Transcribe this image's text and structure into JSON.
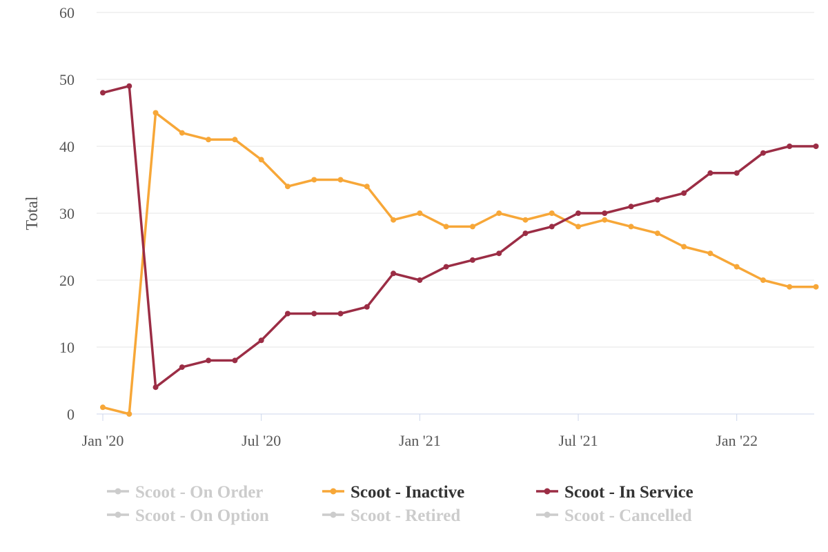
{
  "chart_data": {
    "type": "line",
    "title": "",
    "xlabel": "",
    "ylabel": "Total",
    "ylim": [
      0,
      60
    ],
    "y_ticks": [
      0,
      10,
      20,
      30,
      40,
      50,
      60
    ],
    "x_ticks": [
      {
        "index": 0,
        "label": "Jan '20"
      },
      {
        "index": 6,
        "label": "Jul '20"
      },
      {
        "index": 12,
        "label": "Jan '21"
      },
      {
        "index": 18,
        "label": "Jul '21"
      },
      {
        "index": 24,
        "label": "Jan '22"
      }
    ],
    "x": [
      "2020-01",
      "2020-02",
      "2020-03",
      "2020-04",
      "2020-05",
      "2020-06",
      "2020-07",
      "2020-08",
      "2020-09",
      "2020-10",
      "2020-11",
      "2020-12",
      "2021-01",
      "2021-02",
      "2021-03",
      "2021-04",
      "2021-05",
      "2021-06",
      "2021-07",
      "2021-08",
      "2021-09",
      "2021-10",
      "2021-11",
      "2021-12",
      "2022-01",
      "2022-02",
      "2022-03",
      "2022-04"
    ],
    "grid": true,
    "legend_position": "bottom",
    "series": [
      {
        "name": "Scoot - Inactive",
        "color": "#f7a738",
        "visible": true,
        "values": [
          1,
          0,
          45,
          42,
          41,
          41,
          38,
          34,
          35,
          35,
          34,
          29,
          30,
          28,
          28,
          30,
          29,
          30,
          28,
          29,
          28,
          27,
          25,
          24,
          22,
          20,
          19,
          19
        ]
      },
      {
        "name": "Scoot - In Service",
        "color": "#9b2d45",
        "visible": true,
        "values": [
          48,
          49,
          4,
          7,
          8,
          8,
          11,
          15,
          15,
          15,
          16,
          21,
          20,
          22,
          23,
          24,
          27,
          28,
          30,
          30,
          31,
          32,
          33,
          36,
          36,
          39,
          40,
          40
        ]
      }
    ],
    "legend": [
      {
        "label": "Scoot - On Order",
        "active": false,
        "color": "#cccccc"
      },
      {
        "label": "Scoot - Inactive",
        "active": true,
        "color": "#f7a738"
      },
      {
        "label": "Scoot - In Service",
        "active": true,
        "color": "#9b2d45"
      },
      {
        "label": "Scoot - On Option",
        "active": false,
        "color": "#cccccc"
      },
      {
        "label": "Scoot - Retired",
        "active": false,
        "color": "#cccccc"
      },
      {
        "label": "Scoot - Cancelled",
        "active": false,
        "color": "#cccccc"
      }
    ]
  }
}
